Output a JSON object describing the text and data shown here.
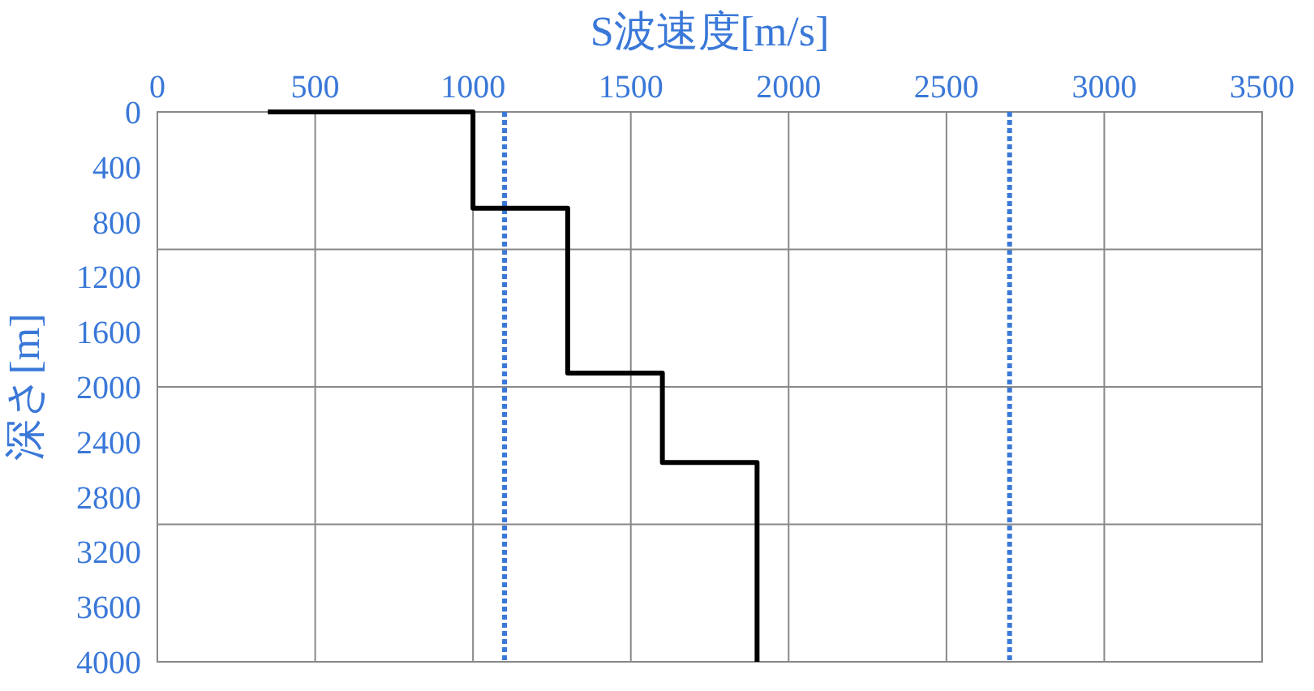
{
  "chart_data": {
    "type": "line",
    "xlabel": "S波速度[m/s]",
    "ylabel": "深さ[m]",
    "series": [
      {
        "color": "#000000",
        "x": [
          350,
          1000,
          1000,
          1300,
          1300,
          1600,
          1600,
          1900,
          1900
        ],
        "values": [
          0,
          0,
          700,
          700,
          1900,
          1900,
          2550,
          2550,
          4000
        ]
      }
    ],
    "xlim": [
      0,
      3500
    ],
    "xticks": [
      0,
      500,
      1000,
      1500,
      2000,
      2500,
      3000,
      3500
    ],
    "ylim": [
      4000,
      0
    ],
    "yticks": [
      0,
      400,
      800,
      1200,
      1600,
      2000,
      2400,
      2800,
      3200,
      3600,
      4000
    ],
    "grid": "x",
    "marker": "none",
    "line_style": "solid",
    "ref_lines": [
      {
        "axis": "x",
        "value": 1100,
        "color": "#3a78d8",
        "line_style": "dotted"
      },
      {
        "axis": "x",
        "value": 2700,
        "color": "#3a78d8",
        "line_style": "dotted"
      },
      {
        "axis": "y",
        "value": 1000,
        "color": "#888888",
        "line_style": "solid"
      },
      {
        "axis": "y",
        "value": 2000,
        "color": "#888888",
        "line_style": "solid"
      },
      {
        "axis": "y",
        "value": 3000,
        "color": "#888888",
        "line_style": "solid"
      }
    ]
  }
}
